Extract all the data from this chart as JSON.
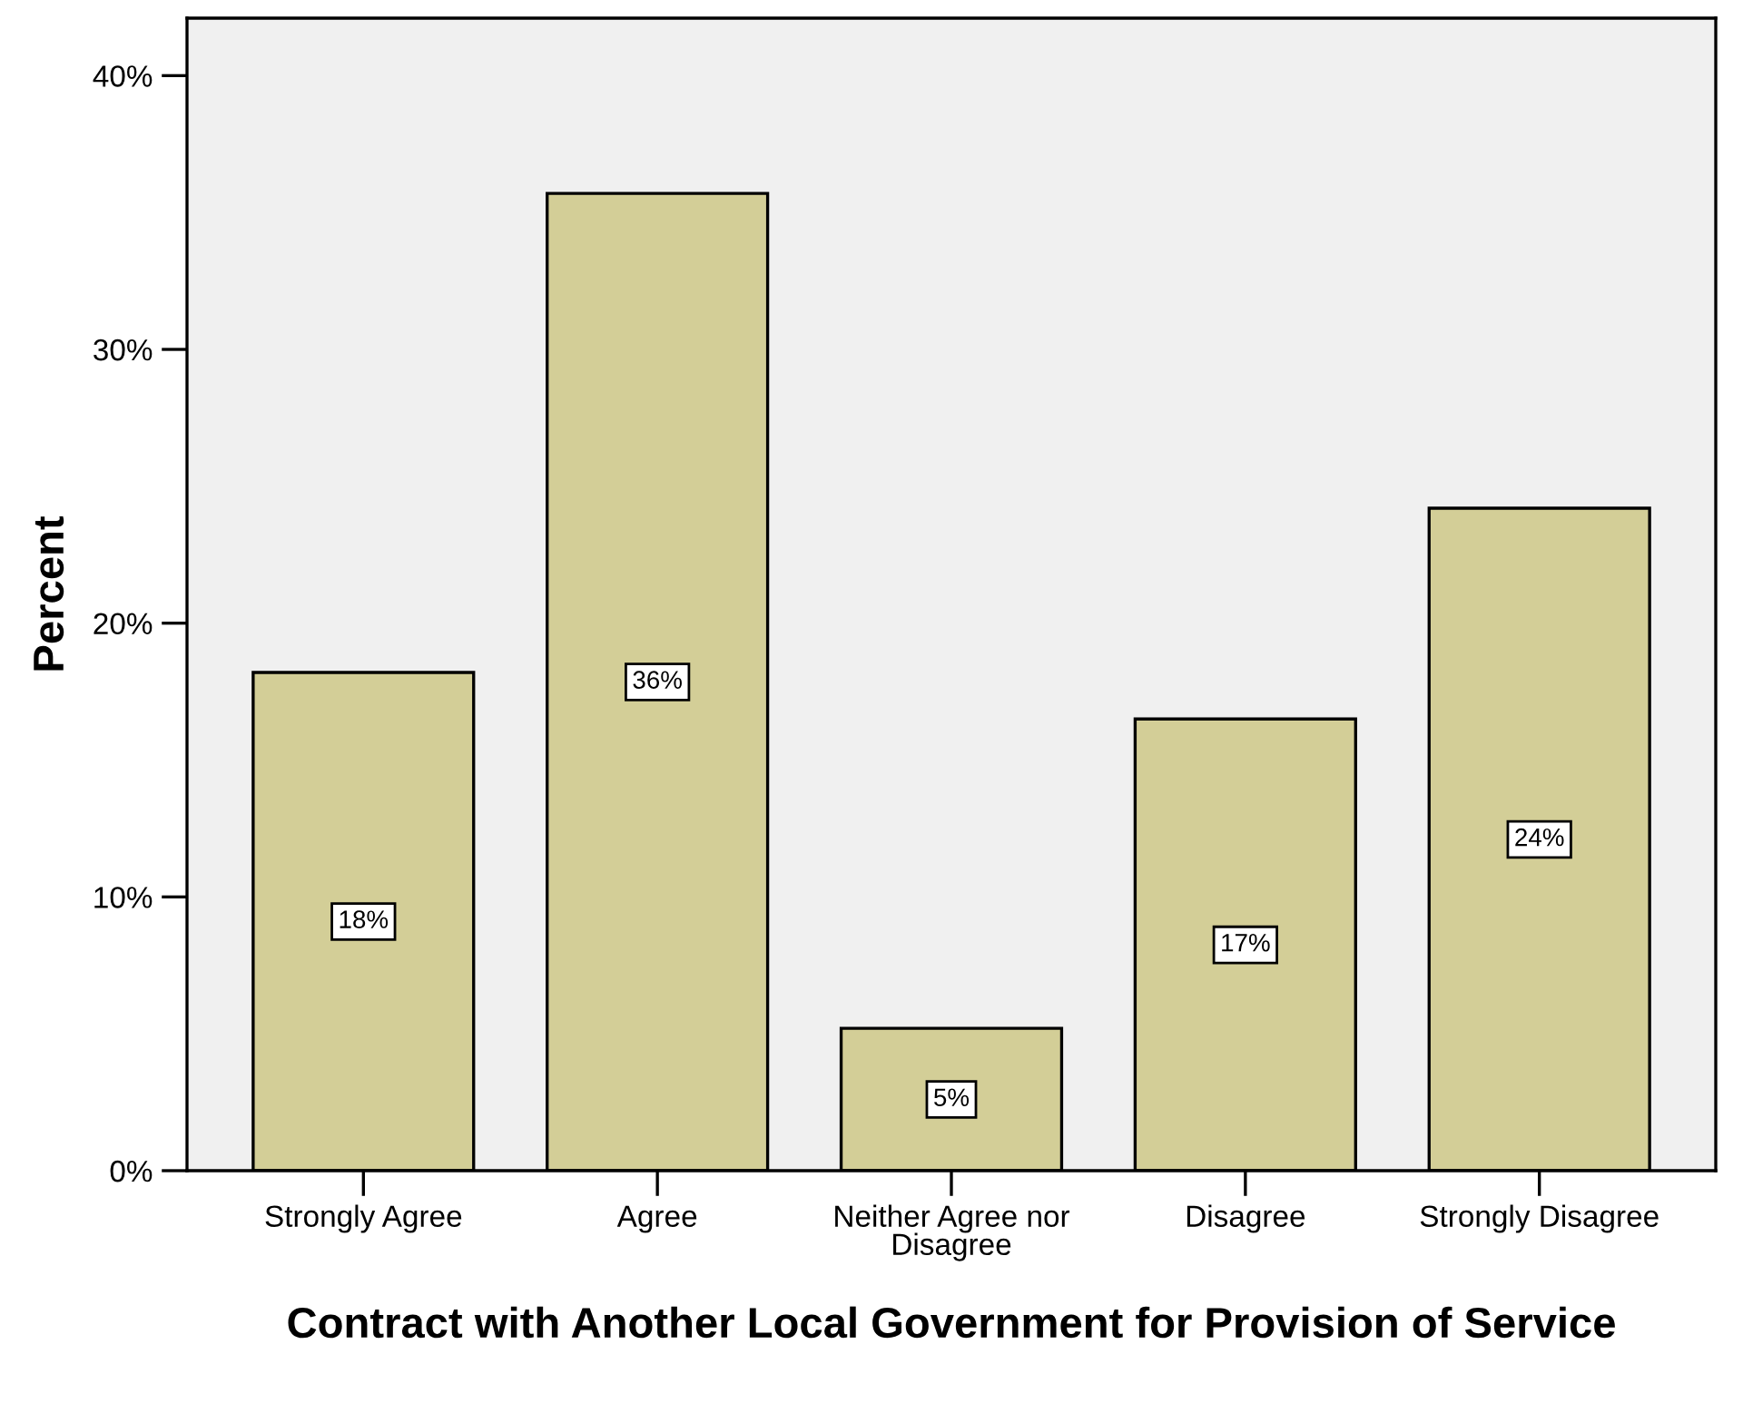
{
  "chart_data": {
    "type": "bar",
    "xlabel": "Contract with Another Local Government for Provision of Service",
    "ylabel": "Percent",
    "categories": [
      "Strongly Agree",
      "Agree",
      "Neither Agree nor Disagree",
      "Disagree",
      "Strongly Disagree"
    ],
    "values": [
      18.2,
      35.7,
      5.2,
      16.5,
      24.2
    ],
    "value_labels": [
      "18%",
      "36%",
      "5%",
      "17%",
      "24%"
    ],
    "color": "#d3ce97",
    "ylim": [
      0,
      42.1
    ],
    "yticks": [
      {
        "value": 0,
        "label": "0%"
      },
      {
        "value": 10,
        "label": "10%"
      },
      {
        "value": 20,
        "label": "20%"
      },
      {
        "value": 30,
        "label": "30%"
      },
      {
        "value": 40,
        "label": "40%"
      }
    ],
    "grid": false
  }
}
